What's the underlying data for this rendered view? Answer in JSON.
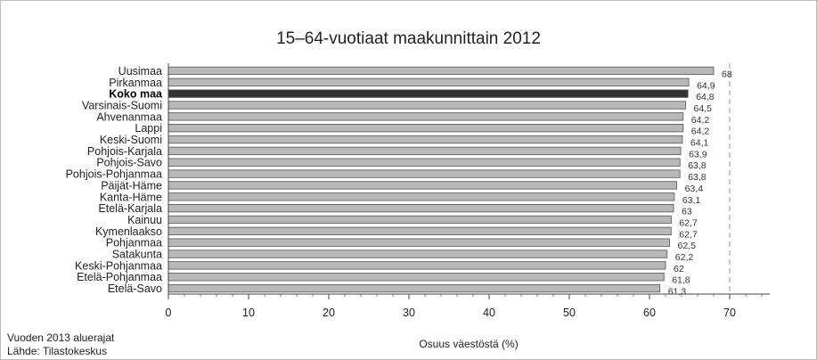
{
  "chart_data": {
    "type": "bar",
    "orientation": "horizontal",
    "title": "15–64-vuotiaat maakunnittain 2012",
    "xlabel": "Osuus väestöstä (%)",
    "ylabel": "",
    "xlim": [
      0,
      75
    ],
    "xticks": [
      0,
      10,
      20,
      30,
      40,
      50,
      60,
      70
    ],
    "reference_line": 70,
    "highlight_category": "Koko maa",
    "categories": [
      "Uusimaa",
      "Pirkanmaa",
      "Koko maa",
      "Varsinais-Suomi",
      "Ahvenanmaa",
      "Lappi",
      "Keski-Suomi",
      "Pohjois-Karjala",
      "Pohjois-Savo",
      "Pohjois-Pohjanmaa",
      "Päijät-Häme",
      "Kanta-Häme",
      "Etelä-Karjala",
      "Kainuu",
      "Kymenlaakso",
      "Pohjanmaa",
      "Satakunta",
      "Keski-Pohjanmaa",
      "Etelä-Pohjanmaa",
      "Etelä-Savo"
    ],
    "values": [
      68,
      64.9,
      64.8,
      64.5,
      64.2,
      64.2,
      64.1,
      63.9,
      63.8,
      63.8,
      63.4,
      63.1,
      63,
      62.7,
      62.7,
      62.5,
      62.2,
      62,
      61.8,
      61.3
    ],
    "value_labels": [
      "68",
      "64,9",
      "64,8",
      "64,5",
      "64,2",
      "64,2",
      "64,1",
      "63,9",
      "63,8",
      "63,8",
      "63,4",
      "63,1",
      "63",
      "62,7",
      "62,7",
      "62,5",
      "62,2",
      "62",
      "61,8",
      "61,3"
    ],
    "colors": {
      "bar": "#b8b8b8",
      "bar_border": "#555555",
      "highlight": "#333333"
    }
  },
  "footnote": {
    "line1": "Vuoden 2013 aluerajat",
    "line2": "Lähde: Tilastokeskus"
  }
}
